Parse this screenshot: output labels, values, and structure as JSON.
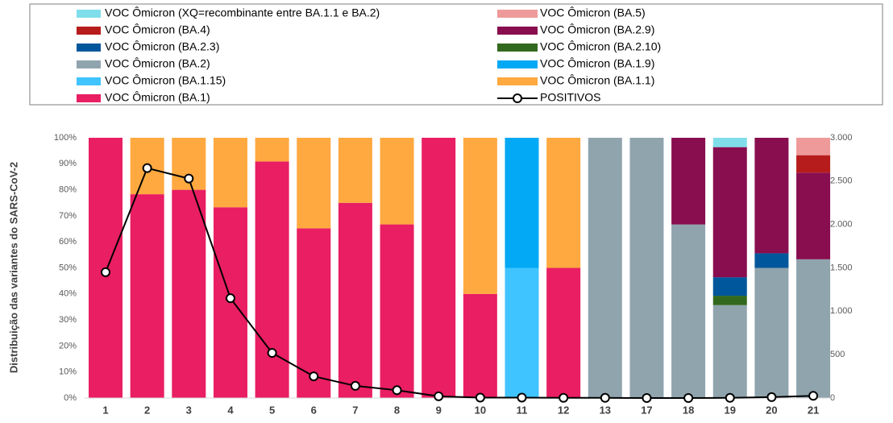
{
  "chart_data": {
    "type": "bar",
    "stacked": true,
    "y_axis_label": "Distribuição das variantes do SARS-CoV-2",
    "categories": [
      "1",
      "2",
      "3",
      "4",
      "5",
      "6",
      "7",
      "8",
      "9",
      "10",
      "11",
      "12",
      "13",
      "17",
      "18",
      "19",
      "20",
      "21"
    ],
    "series": [
      {
        "name": "VOC Ômicron (XQ=recombinante entre BA.1.1 e BA.2)",
        "color": "#80deea",
        "values": [
          0,
          0,
          0,
          0,
          0,
          0,
          0,
          0,
          0,
          0,
          0,
          0,
          0,
          0,
          0,
          3.6,
          0,
          0
        ]
      },
      {
        "name": "VOC Ômicron (BA.5)",
        "color": "#ef9a9a",
        "values": [
          0,
          0,
          0,
          0,
          0,
          0,
          0,
          0,
          0,
          0,
          0,
          0,
          0,
          0,
          0,
          0,
          0,
          6.7
        ]
      },
      {
        "name": "VOC Ômicron (BA.4)",
        "color": "#b71c1c",
        "values": [
          0,
          0,
          0,
          0,
          0,
          0,
          0,
          0,
          0,
          0,
          0,
          0,
          0,
          0,
          0,
          0,
          0,
          6.7
        ]
      },
      {
        "name": "VOC Ômicron (BA.2.9)",
        "color": "#880e4f",
        "values": [
          0,
          0,
          0,
          0,
          0,
          0,
          0,
          0,
          0,
          0,
          0,
          0,
          0,
          0,
          33.3,
          50,
          44.4,
          33.3
        ]
      },
      {
        "name": "VOC Ômicron (BA.2.3)",
        "color": "#01579b",
        "values": [
          0,
          0,
          0,
          0,
          0,
          0,
          0,
          0,
          0,
          0,
          0,
          0,
          0,
          0,
          0,
          7.1,
          5.6,
          0
        ]
      },
      {
        "name": "VOC Ômicron (BA.2.10)",
        "color": "#33691e",
        "values": [
          0,
          0,
          0,
          0,
          0,
          0,
          0,
          0,
          0,
          0,
          0,
          0,
          0,
          0,
          0,
          3.6,
          0,
          0
        ]
      },
      {
        "name": "VOC Ômicron (BA.2)",
        "color": "#90a4ae",
        "values": [
          0,
          0,
          0,
          0,
          0,
          0,
          0,
          0,
          0,
          0,
          0,
          0,
          100,
          100,
          66.7,
          35.7,
          50,
          53.3
        ]
      },
      {
        "name": "VOC Ômicron (BA.1.9)",
        "color": "#03a9f4",
        "values": [
          0,
          0,
          0,
          0,
          0,
          0,
          0,
          0,
          0,
          0,
          50,
          0,
          0,
          0,
          0,
          0,
          0,
          0
        ]
      },
      {
        "name": "VOC Ômicron (BA.1.15)",
        "color": "#40c4ff",
        "values": [
          0,
          0,
          0,
          0,
          0,
          0,
          0,
          0,
          0,
          0,
          50,
          0,
          0,
          0,
          0,
          0,
          0,
          0
        ]
      },
      {
        "name": "VOC Ômicron (BA.1.1)",
        "color": "#ffa940",
        "values": [
          0,
          21.7,
          20,
          26.7,
          9.1,
          34.8,
          25,
          33.3,
          0,
          60,
          0,
          50,
          0,
          0,
          0,
          0,
          0,
          0
        ]
      },
      {
        "name": "VOC Ômicron (BA.1)",
        "color": "#e91e63",
        "values": [
          100,
          78.3,
          80,
          73.3,
          90.9,
          65.2,
          75,
          66.7,
          100,
          40,
          0,
          50,
          0,
          0,
          0,
          0,
          0,
          0
        ]
      },
      {
        "name": "POSITIVOS",
        "color": "#000000",
        "axis": "y2",
        "values": [
          1450,
          2650,
          2530,
          1150,
          520,
          250,
          140,
          90,
          20,
          5,
          5,
          2,
          2,
          0,
          0,
          2,
          10,
          25
        ]
      }
    ],
    "ylim": [
      0,
      100
    ],
    "yticks": [
      {
        "value": 0,
        "label": "0%"
      },
      {
        "value": 10,
        "label": "10%"
      },
      {
        "value": 20,
        "label": "20%"
      },
      {
        "value": 30,
        "label": "30%"
      },
      {
        "value": 40,
        "label": "40%"
      },
      {
        "value": 50,
        "label": "50%"
      },
      {
        "value": 60,
        "label": "60%"
      },
      {
        "value": 70,
        "label": "70%"
      },
      {
        "value": 80,
        "label": "80%"
      },
      {
        "value": 90,
        "label": "90%"
      },
      {
        "value": 100,
        "label": "100%"
      }
    ],
    "y2lim": [
      0,
      3000
    ],
    "y2ticks": [
      0,
      500,
      {
        "value": 1000,
        "label": "1.000"
      },
      {
        "value": 1500,
        "label": "1.500"
      },
      {
        "value": 2000,
        "label": "2.000"
      },
      {
        "value": 2500,
        "label": "2.500"
      },
      {
        "value": 3000,
        "label": "3.000"
      }
    ]
  }
}
